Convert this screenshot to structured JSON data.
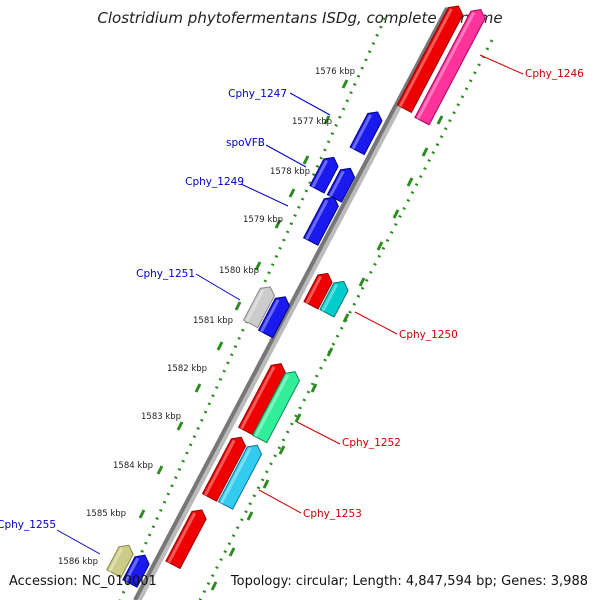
{
  "title": "Clostridium phytofermentans ISDg, complete genome",
  "footer": {
    "accession": "Accession: NC_010001",
    "summary": "Topology: circular; Length: 4,847,594 bp; Genes: 3,988"
  },
  "kbp_ticks": [
    {
      "label": "1576 kbp"
    },
    {
      "label": "1577 kbp"
    },
    {
      "label": "1578 kbp"
    },
    {
      "label": "1579 kbp"
    },
    {
      "label": "1580 kbp"
    },
    {
      "label": "1581 kbp"
    },
    {
      "label": "1582 kbp"
    },
    {
      "label": "1583 kbp"
    },
    {
      "label": "1584 kbp"
    },
    {
      "label": "1585 kbp"
    },
    {
      "label": "1586 kbp"
    }
  ],
  "gene_labels": [
    {
      "label": "Cphy_1246",
      "strand": "reverse"
    },
    {
      "label": "Cphy_1247",
      "strand": "forward"
    },
    {
      "label": "spoVFB",
      "strand": "forward"
    },
    {
      "label": "Cphy_1249",
      "strand": "forward"
    },
    {
      "label": "Cphy_1251",
      "strand": "forward"
    },
    {
      "label": "Cphy_1250",
      "strand": "reverse"
    },
    {
      "label": "Cphy_1252",
      "strand": "reverse"
    },
    {
      "label": "Cphy_1253",
      "strand": "reverse"
    },
    {
      "label": "Cphy_1255",
      "strand": "forward"
    }
  ],
  "colors": {
    "forward_label": "#0000cc",
    "reverse_label": "#cc0000",
    "backbone": "#777777",
    "dot_track": "#2e8b22"
  }
}
